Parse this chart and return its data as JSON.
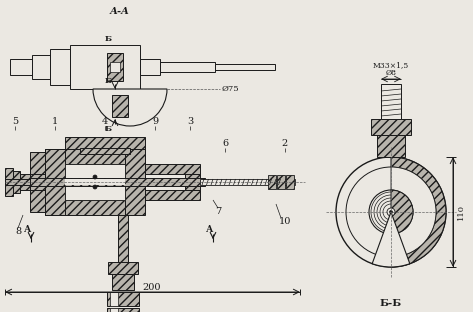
{
  "bg_color": "#ebe8e2",
  "lc": "#1a1a1a",
  "hatch_fc": "#b8b4ac",
  "title_bb": "Б-Б",
  "title_aa": "А-А",
  "label_200": "200",
  "label_110": "110",
  "label_phi75": "Ø75",
  "label_phi8": "Ø8",
  "label_m33": "М33×1,5",
  "cut_a": "А",
  "cut_b": "Б",
  "parts": [
    "5",
    "1",
    "4",
    "9",
    "3",
    "6",
    "2",
    "8",
    "7",
    "10"
  ]
}
